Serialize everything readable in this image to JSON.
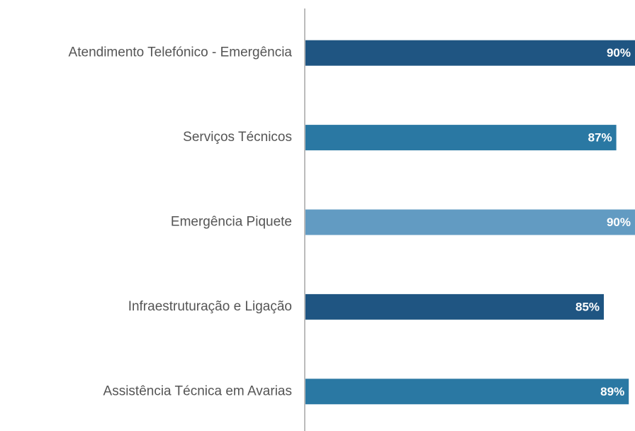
{
  "chart_data": {
    "type": "bar",
    "orientation": "horizontal",
    "categories": [
      "Atendimento Telefónico - Emergência",
      "Serviços Técnicos",
      "Emergência Piquete",
      "Infraestruturação e Ligação",
      "Assistência Técnica em Avarias"
    ],
    "values": [
      90,
      87,
      90,
      85,
      89
    ],
    "value_labels": [
      "90%",
      "87%",
      "90%",
      "85%",
      "89%"
    ],
    "colors": [
      "#1f5582",
      "#2a78a3",
      "#629bc2",
      "#1f5582",
      "#2a78a3"
    ],
    "xlim": [
      37,
      90
    ]
  }
}
